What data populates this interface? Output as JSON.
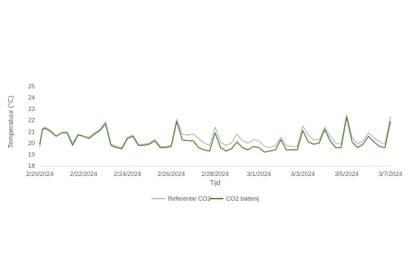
{
  "chart_data": {
    "type": "line",
    "xlabel": "Tijd",
    "ylabel": "Temperatuur (°C)",
    "ylim": [
      18,
      25
    ],
    "yticks": [
      18,
      19,
      20,
      21,
      22,
      23,
      24,
      25
    ],
    "xlim": [
      "2/20/2024",
      "3/7/2024"
    ],
    "xticks": [
      "2/20/2024",
      "2/22/2024",
      "2/24/2024",
      "2/26/2024",
      "2/28/2024",
      "3/1/2024",
      "3/3/2024",
      "3/5/2024",
      "3/7/2024"
    ],
    "grid": false,
    "legend_position": "bottom",
    "series": [
      {
        "name": "Referentie CO2",
        "color": "#c0c0c0",
        "x": [
          "2/20/2024",
          "2/20/2024 03:00",
          "2/20/2024 06:00",
          "2/20/2024 12:00",
          "2/20/2024 18:00",
          "2/21/2024",
          "2/21/2024 06:00",
          "2/21/2024 12:00",
          "2/21/2024 18:00",
          "2/22/2024",
          "2/22/2024 06:00",
          "2/22/2024 12:00",
          "2/22/2024 18:00",
          "2/23/2024",
          "2/23/2024 06:00",
          "2/23/2024 12:00",
          "2/23/2024 18:00",
          "2/24/2024",
          "2/24/2024 06:00",
          "2/24/2024 12:00",
          "2/24/2024 18:00",
          "2/25/2024",
          "2/25/2024 06:00",
          "2/25/2024 12:00",
          "2/25/2024 18:00",
          "2/26/2024",
          "2/26/2024 06:00",
          "2/26/2024 12:00",
          "2/26/2024 18:00",
          "2/27/2024",
          "2/27/2024 06:00",
          "2/27/2024 12:00",
          "2/27/2024 18:00",
          "2/28/2024",
          "2/28/2024 06:00",
          "2/28/2024 12:00",
          "2/28/2024 18:00",
          "2/29/2024",
          "2/29/2024 06:00",
          "2/29/2024 12:00",
          "2/29/2024 18:00",
          "3/1/2024",
          "3/1/2024 06:00",
          "3/1/2024 12:00",
          "3/1/2024 18:00",
          "3/2/2024",
          "3/2/2024 06:00",
          "3/2/2024 12:00",
          "3/2/2024 18:00",
          "3/3/2024",
          "3/3/2024 06:00",
          "3/3/2024 12:00",
          "3/3/2024 18:00",
          "3/4/2024",
          "3/4/2024 06:00",
          "3/4/2024 12:00",
          "3/4/2024 18:00",
          "3/5/2024",
          "3/5/2024 06:00",
          "3/5/2024 12:00",
          "3/5/2024 18:00",
          "3/6/2024",
          "3/6/2024 06:00",
          "3/6/2024 12:00",
          "3/6/2024 18:00",
          "3/7/2024"
        ],
        "values": [
          19.6,
          21.3,
          21.4,
          21.1,
          20.6,
          20.9,
          21.0,
          20.0,
          20.8,
          20.6,
          20.5,
          20.9,
          21.2,
          21.9,
          19.9,
          19.7,
          19.6,
          20.5,
          20.7,
          19.9,
          19.9,
          20.0,
          20.3,
          19.7,
          19.7,
          19.8,
          22.1,
          20.8,
          20.7,
          20.8,
          20.4,
          20.0,
          19.8,
          21.4,
          20.1,
          19.8,
          20.0,
          20.8,
          20.2,
          20.0,
          20.3,
          20.2,
          19.7,
          19.6,
          19.8,
          20.5,
          19.8,
          19.7,
          19.7,
          21.5,
          20.7,
          20.3,
          20.3,
          21.4,
          20.6,
          20.0,
          19.9,
          22.5,
          20.5,
          19.9,
          20.2,
          20.9,
          20.5,
          20.1,
          19.9,
          22.3
        ]
      },
      {
        "name": "CO2 batterij",
        "color": "#548235",
        "x": [
          "2/20/2024",
          "2/20/2024 03:00",
          "2/20/2024 06:00",
          "2/20/2024 12:00",
          "2/20/2024 18:00",
          "2/21/2024",
          "2/21/2024 06:00",
          "2/21/2024 12:00",
          "2/21/2024 18:00",
          "2/22/2024",
          "2/22/2024 06:00",
          "2/22/2024 12:00",
          "2/22/2024 18:00",
          "2/23/2024",
          "2/23/2024 06:00",
          "2/23/2024 12:00",
          "2/23/2024 18:00",
          "2/24/2024",
          "2/24/2024 06:00",
          "2/24/2024 12:00",
          "2/24/2024 18:00",
          "2/25/2024",
          "2/25/2024 06:00",
          "2/25/2024 12:00",
          "2/25/2024 18:00",
          "2/26/2024",
          "2/26/2024 06:00",
          "2/26/2024 12:00",
          "2/26/2024 18:00",
          "2/27/2024",
          "2/27/2024 06:00",
          "2/27/2024 12:00",
          "2/27/2024 18:00",
          "2/28/2024",
          "2/28/2024 06:00",
          "2/28/2024 12:00",
          "2/28/2024 18:00",
          "2/29/2024",
          "2/29/2024 06:00",
          "2/29/2024 12:00",
          "2/29/2024 18:00",
          "3/1/2024",
          "3/1/2024 06:00",
          "3/1/2024 12:00",
          "3/1/2024 18:00",
          "3/2/2024",
          "3/2/2024 06:00",
          "3/2/2024 12:00",
          "3/2/2024 18:00",
          "3/3/2024",
          "3/3/2024 06:00",
          "3/3/2024 12:00",
          "3/3/2024 18:00",
          "3/4/2024",
          "3/4/2024 06:00",
          "3/4/2024 12:00",
          "3/4/2024 18:00",
          "3/5/2024",
          "3/5/2024 06:00",
          "3/5/2024 12:00",
          "3/5/2024 18:00",
          "3/6/2024",
          "3/6/2024 06:00",
          "3/6/2024 12:00",
          "3/6/2024 18:00",
          "3/7/2024"
        ],
        "values": [
          19.9,
          21.2,
          21.3,
          21.0,
          20.6,
          20.9,
          20.9,
          19.8,
          20.7,
          20.6,
          20.4,
          20.8,
          21.1,
          21.7,
          19.8,
          19.6,
          19.5,
          20.4,
          20.6,
          19.8,
          19.8,
          19.9,
          20.2,
          19.6,
          19.6,
          19.7,
          21.9,
          20.3,
          20.2,
          20.2,
          19.6,
          19.4,
          19.3,
          20.9,
          19.6,
          19.3,
          19.5,
          20.1,
          19.6,
          19.4,
          19.7,
          19.6,
          19.2,
          19.3,
          19.4,
          20.3,
          19.4,
          19.4,
          19.4,
          21.1,
          20.1,
          19.9,
          20.0,
          21.2,
          20.2,
          19.6,
          19.6,
          22.3,
          20.1,
          19.6,
          19.9,
          20.6,
          20.1,
          19.7,
          19.6,
          21.9
        ]
      }
    ]
  }
}
